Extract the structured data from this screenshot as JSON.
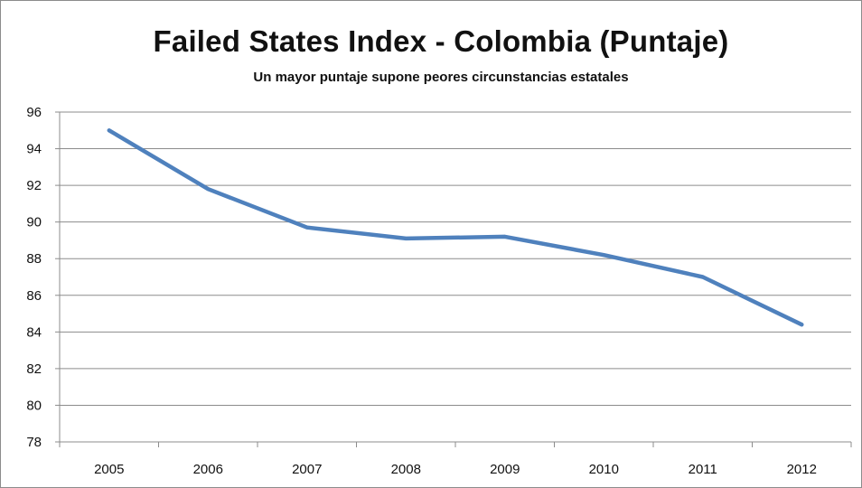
{
  "chart_data": {
    "type": "line",
    "title": "Failed States Index - Colombia (Puntaje)",
    "subtitle": "Un  mayor puntaje supone peores circunstancias  estatales",
    "xlabel": "",
    "ylabel": "",
    "categories": [
      "2005",
      "2006",
      "2007",
      "2008",
      "2009",
      "2010",
      "2011",
      "2012"
    ],
    "series": [
      {
        "values": [
          95.0,
          91.8,
          89.7,
          89.1,
          89.2,
          88.2,
          87.0,
          84.4
        ]
      }
    ],
    "ylim": [
      78,
      96
    ],
    "yticks": [
      "78",
      "80",
      "82",
      "84",
      "86",
      "88",
      "90",
      "92",
      "94",
      "96"
    ],
    "grid": true,
    "legend": "none",
    "colors": {
      "line": "#4f81bd",
      "grid": "#8c8c8c",
      "axis": "#8c8c8c"
    }
  }
}
